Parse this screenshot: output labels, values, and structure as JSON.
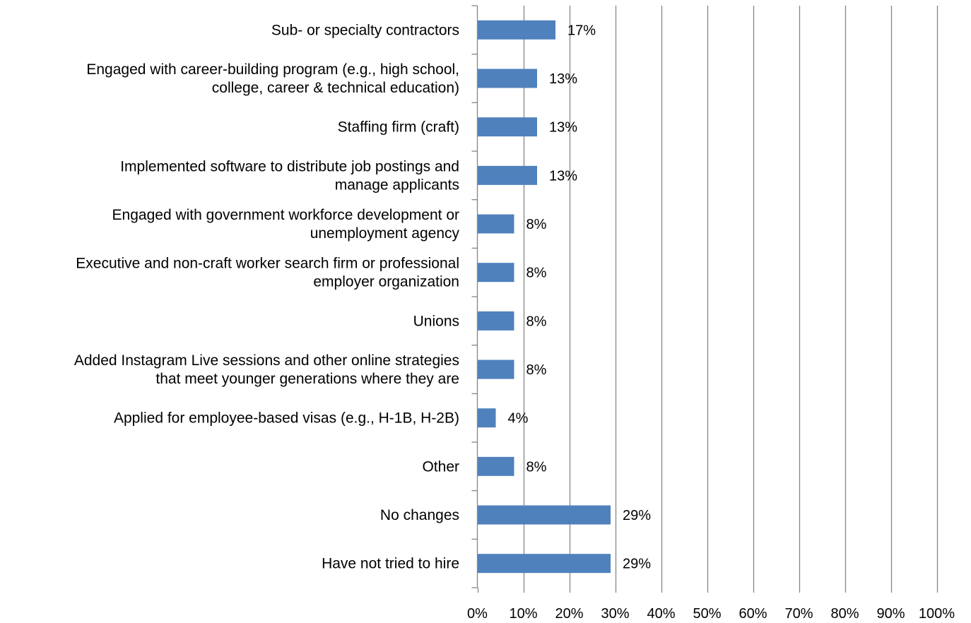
{
  "chart_data": {
    "type": "bar",
    "orientation": "horizontal",
    "categories": [
      [
        "Sub- or specialty contractors"
      ],
      [
        "Engaged with career-building program (e.g., high school,",
        "college, career & technical education)"
      ],
      [
        "Staffing firm (craft)"
      ],
      [
        "Implemented software to distribute job postings and",
        "manage applicants"
      ],
      [
        "Engaged with government workforce development or",
        "unemployment agency"
      ],
      [
        "Executive and non-craft worker search firm or professional",
        "employer organization"
      ],
      [
        "Unions"
      ],
      [
        "Added Instagram Live sessions and other online strategies",
        "that meet younger generations where they are"
      ],
      [
        "Applied for employee-based visas (e.g., H-1B, H-2B)"
      ],
      [
        "Other"
      ],
      [
        "No changes"
      ],
      [
        "Have not tried to hire"
      ]
    ],
    "values": [
      17,
      13,
      13,
      13,
      8,
      8,
      8,
      8,
      4,
      8,
      29,
      29
    ],
    "value_labels": [
      "17%",
      "13%",
      "13%",
      "13%",
      "8%",
      "8%",
      "8%",
      "8%",
      "4%",
      "8%",
      "29%",
      "29%"
    ],
    "bar_color": "#4F81BD",
    "gridline_color": "#868686",
    "xlim": [
      0,
      100
    ],
    "x_ticks": [
      0,
      10,
      20,
      30,
      40,
      50,
      60,
      70,
      80,
      90,
      100
    ],
    "x_tick_labels": [
      "0%",
      "10%",
      "20%",
      "30%",
      "40%",
      "50%",
      "60%",
      "70%",
      "80%",
      "90%",
      "100%"
    ],
    "grid": true,
    "legend": "none"
  }
}
